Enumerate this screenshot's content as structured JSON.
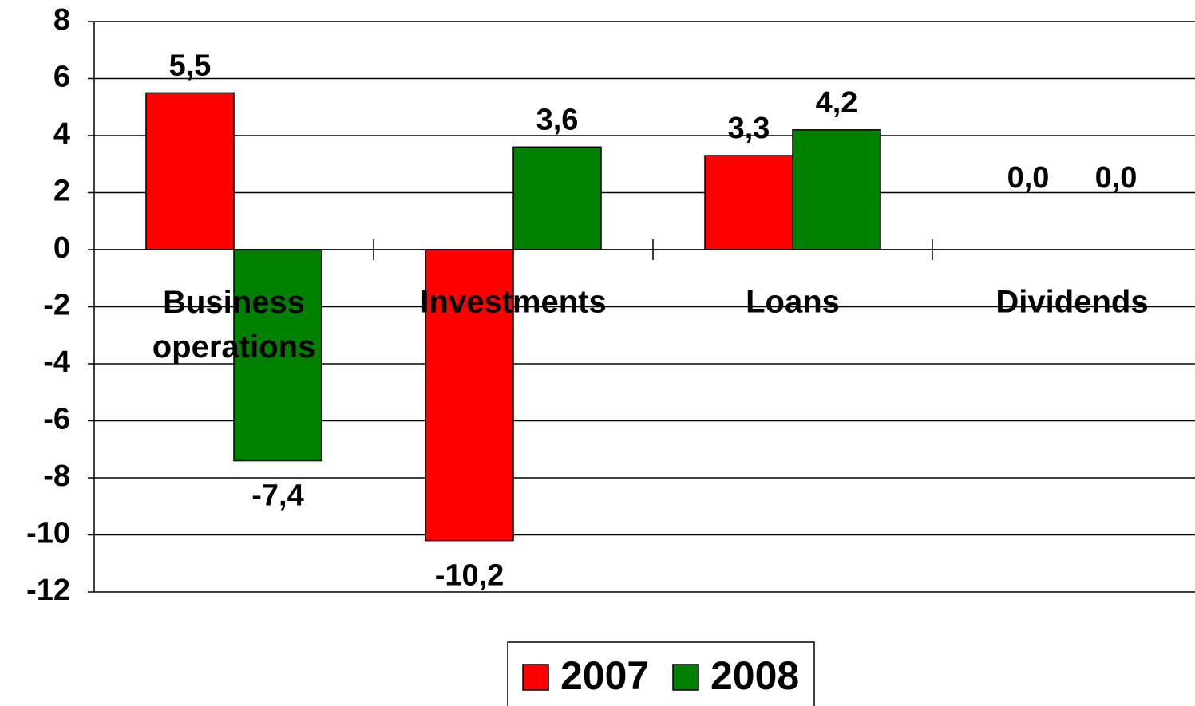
{
  "chart_data": {
    "type": "bar",
    "categories": [
      "Business operations",
      "Investments",
      "Loans",
      "Dividends"
    ],
    "series": [
      {
        "name": "2007",
        "color": "#ff0000",
        "values": [
          5.5,
          -10.2,
          3.3,
          0.0
        ],
        "value_labels": [
          "5,5",
          "-10,2",
          "3,3",
          "0,0"
        ]
      },
      {
        "name": "2008",
        "color": "#008000",
        "values": [
          -7.4,
          3.6,
          4.2,
          0.0
        ],
        "value_labels": [
          "-7,4",
          "3,6",
          "4,2",
          "0,0"
        ]
      }
    ],
    "ylim": [
      -12,
      8
    ],
    "yticks": [
      -12,
      -10,
      -8,
      -6,
      -4,
      -2,
      0,
      2,
      4,
      6,
      8
    ],
    "grid": true,
    "legend": "bottom"
  }
}
